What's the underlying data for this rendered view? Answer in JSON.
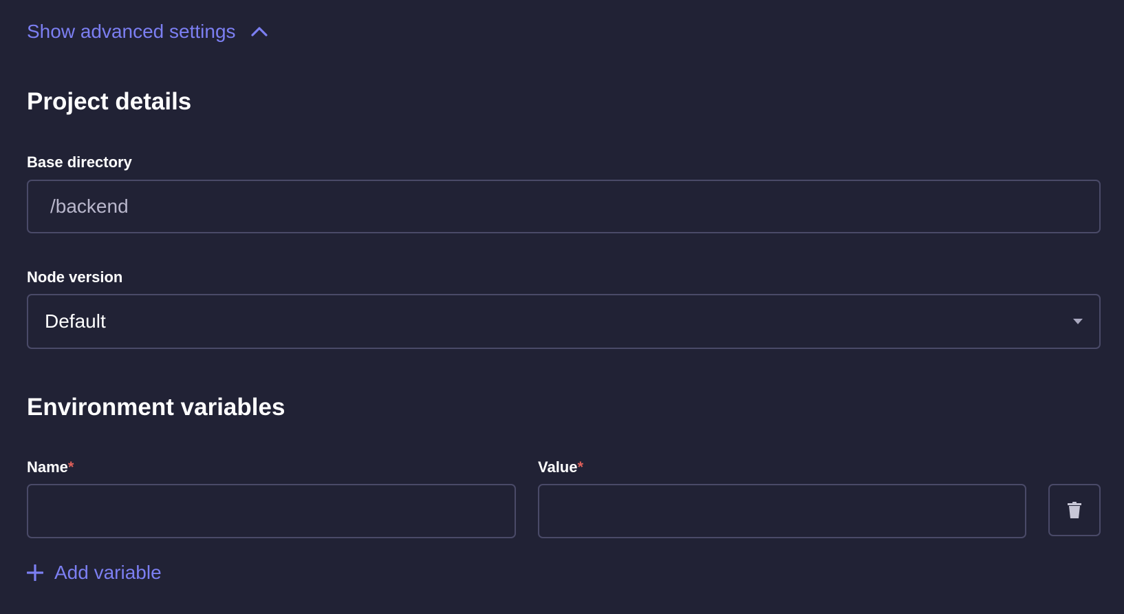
{
  "advanced_toggle": {
    "label": "Show advanced settings",
    "icon": "chevron-up-icon",
    "expanded": true
  },
  "project_details": {
    "heading": "Project details",
    "base_directory": {
      "label": "Base directory",
      "value": "/backend"
    },
    "node_version": {
      "label": "Node version",
      "selected": "Default"
    }
  },
  "environment_variables": {
    "heading": "Environment variables",
    "name_label": "Name",
    "value_label": "Value",
    "required_mark": "*",
    "rows": [
      {
        "name": "",
        "value": ""
      }
    ],
    "add_label": "Add variable"
  },
  "colors": {
    "background": "#212235",
    "accent": "#7c7ff2",
    "border": "#4a4a68",
    "required": "#e0605a"
  }
}
